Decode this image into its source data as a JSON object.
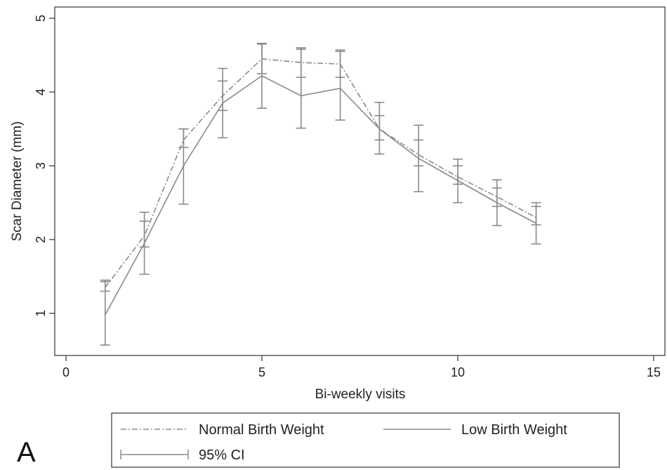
{
  "panel_label": "A",
  "colors": {
    "axis": "#333333",
    "series": "#8a8a8a",
    "text": "#222222"
  },
  "chart_data": {
    "type": "line",
    "xlabel": "Bi-weekly visits",
    "ylabel": "Scar Diameter (mm)",
    "xlim": [
      0,
      15
    ],
    "ylim": [
      0.5,
      5
    ],
    "xticks": [
      0,
      5,
      10,
      15
    ],
    "yticks": [
      1,
      2,
      3,
      4,
      5
    ],
    "grid": false,
    "legend_position": "bottom",
    "legend": {
      "entries": [
        "Normal Birth Weight",
        "Low Birth Weight",
        "95% CI"
      ]
    },
    "x": [
      1,
      2,
      3,
      4,
      5,
      6,
      7,
      8,
      9,
      10,
      11,
      12
    ],
    "series": [
      {
        "name": "Normal Birth Weight",
        "style": "dash-dot",
        "values": [
          1.35,
          2.05,
          3.35,
          3.95,
          4.45,
          4.4,
          4.38,
          3.5,
          3.15,
          2.85,
          2.58,
          2.3
        ],
        "ci_lower": [
          1.3,
          1.9,
          3.25,
          3.75,
          4.25,
          4.2,
          4.2,
          3.35,
          3.0,
          2.75,
          2.45,
          2.2
        ],
        "ci_upper": [
          1.45,
          2.25,
          3.5,
          4.15,
          4.65,
          4.6,
          4.55,
          3.68,
          3.35,
          3.0,
          2.7,
          2.45
        ]
      },
      {
        "name": "Low Birth Weight",
        "style": "solid",
        "values": [
          0.98,
          1.95,
          3.0,
          3.85,
          4.22,
          3.95,
          4.05,
          3.5,
          3.1,
          2.8,
          2.5,
          2.22
        ],
        "ci_lower": [
          0.57,
          1.53,
          2.48,
          3.38,
          3.78,
          3.51,
          3.62,
          3.16,
          2.65,
          2.5,
          2.19,
          1.94
        ],
        "ci_upper": [
          1.43,
          2.37,
          3.5,
          4.32,
          4.66,
          4.58,
          4.57,
          3.86,
          3.55,
          3.09,
          2.81,
          2.5
        ]
      }
    ]
  }
}
